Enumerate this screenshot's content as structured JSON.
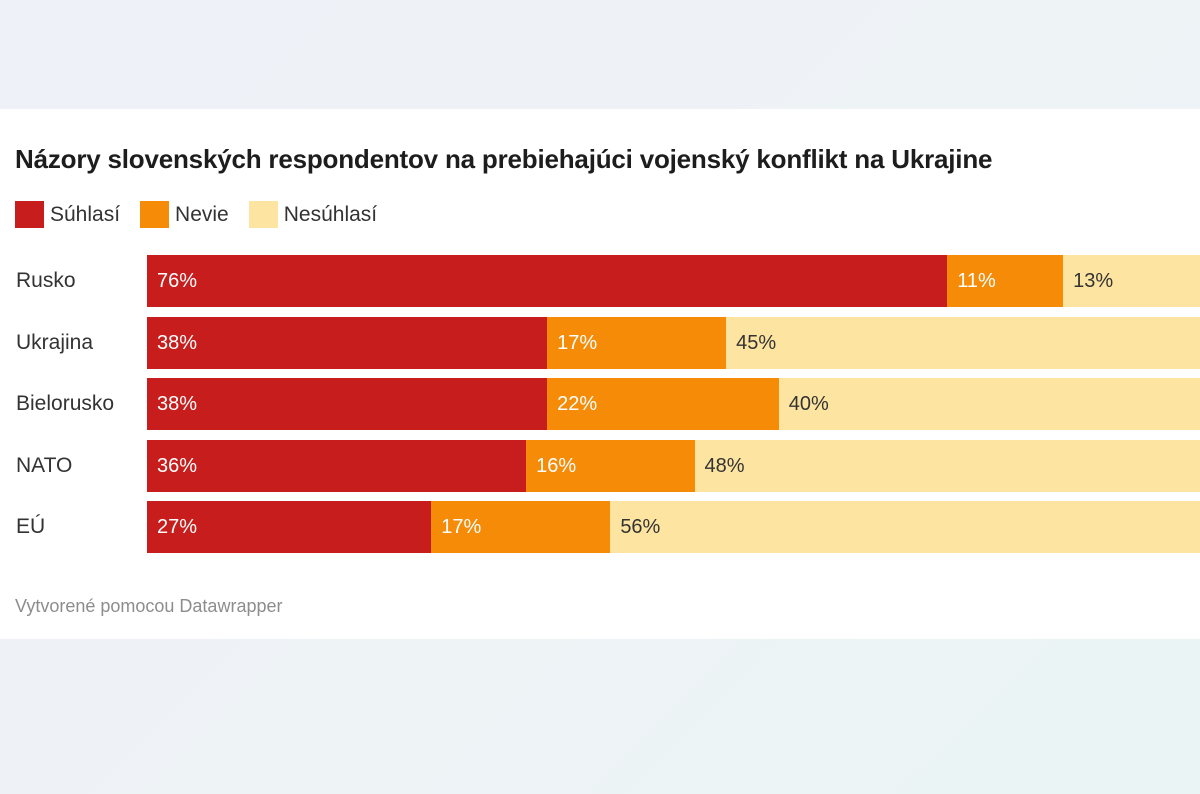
{
  "chart_data": {
    "type": "bar",
    "orientation": "horizontal",
    "stacked": true,
    "title": "Názory slovenských respondentov na prebiehajúci vojenský konflikt na Ukrajine",
    "categories": [
      "Rusko",
      "Ukrajina",
      "Bielorusko",
      "NATO",
      "EÚ"
    ],
    "series": [
      {
        "name": "Súhlasí",
        "color": "#c71e1d",
        "label_color": "#ffffff",
        "values": [
          76,
          38,
          38,
          36,
          27
        ]
      },
      {
        "name": "Nevie",
        "color": "#f58b07",
        "label_color": "#ffffff",
        "values": [
          11,
          17,
          22,
          16,
          17
        ]
      },
      {
        "name": "Nesúhlasí",
        "color": "#fde4a0",
        "label_color": "#333333",
        "values": [
          13,
          45,
          40,
          48,
          56
        ]
      }
    ],
    "value_suffix": "%",
    "xlim": [
      0,
      100
    ],
    "legend_position": "top-left",
    "grid": false
  },
  "footer": "Vytvorené pomocou Datawrapper"
}
